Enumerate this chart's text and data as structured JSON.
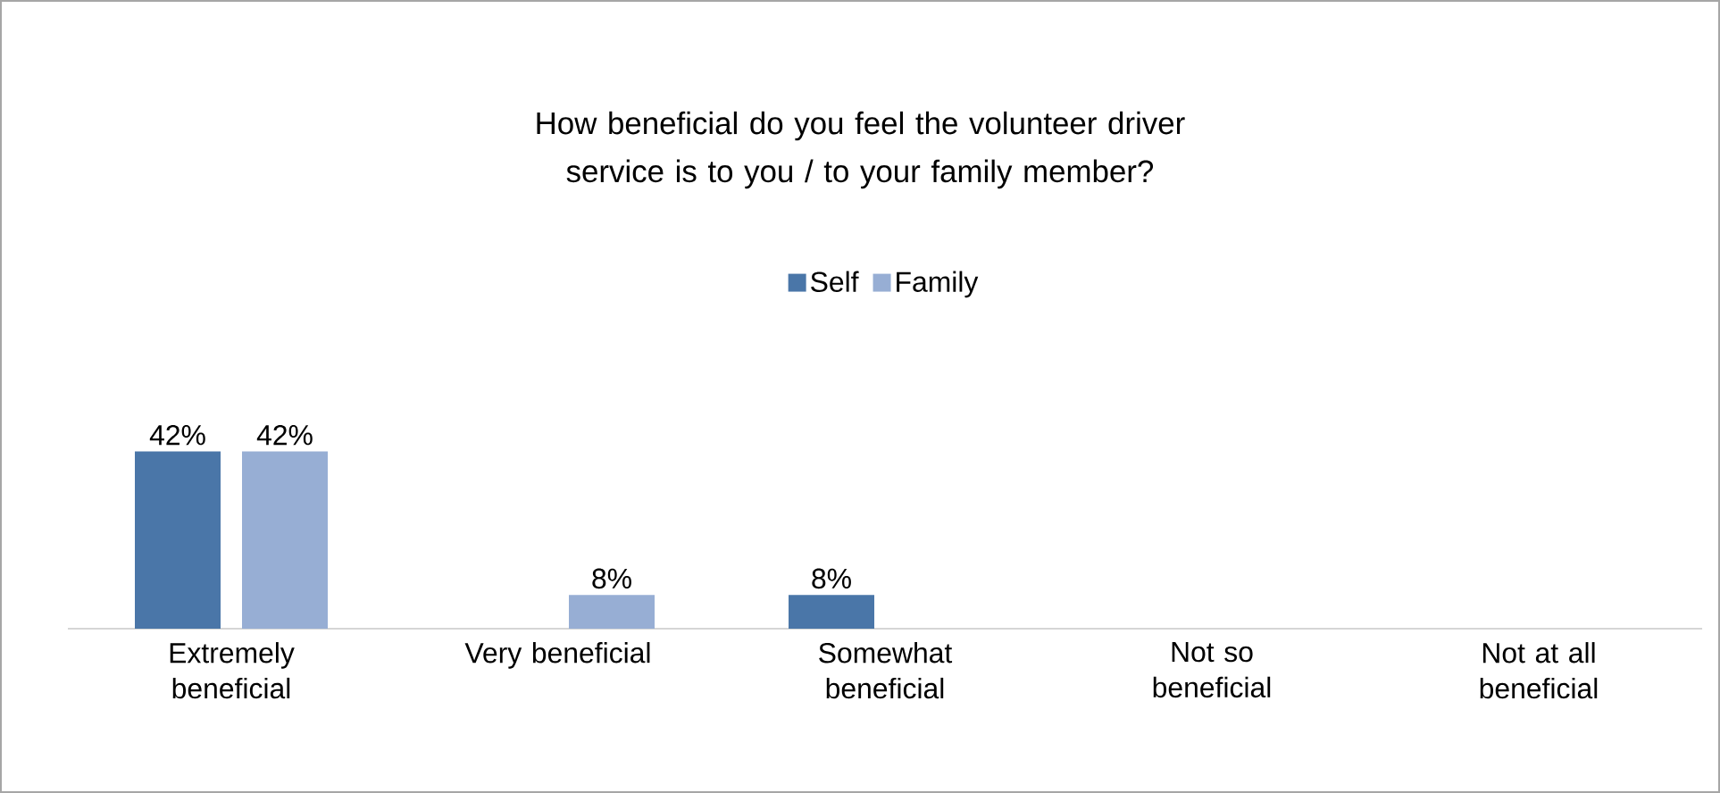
{
  "chart_data": {
    "type": "bar",
    "title": "How beneficial do you feel the volunteer driver service is to you / to your family member?",
    "categories": [
      "Extremely beneficial",
      "Very beneficial",
      "Somewhat beneficial",
      "Not so beneficial",
      "Not at all beneficial"
    ],
    "series": [
      {
        "name": "Self",
        "color": "#4a76a8",
        "values": [
          42,
          0,
          8,
          0,
          0
        ],
        "value_labels": [
          "42%",
          null,
          "8%",
          null,
          null
        ]
      },
      {
        "name": "Family",
        "color": "#97aed4",
        "values": [
          42,
          8,
          0,
          0,
          0
        ],
        "value_labels": [
          "42%",
          "8%",
          null,
          null,
          null
        ]
      }
    ],
    "tick_labels": "x",
    "legend": "top",
    "grid": false
  }
}
